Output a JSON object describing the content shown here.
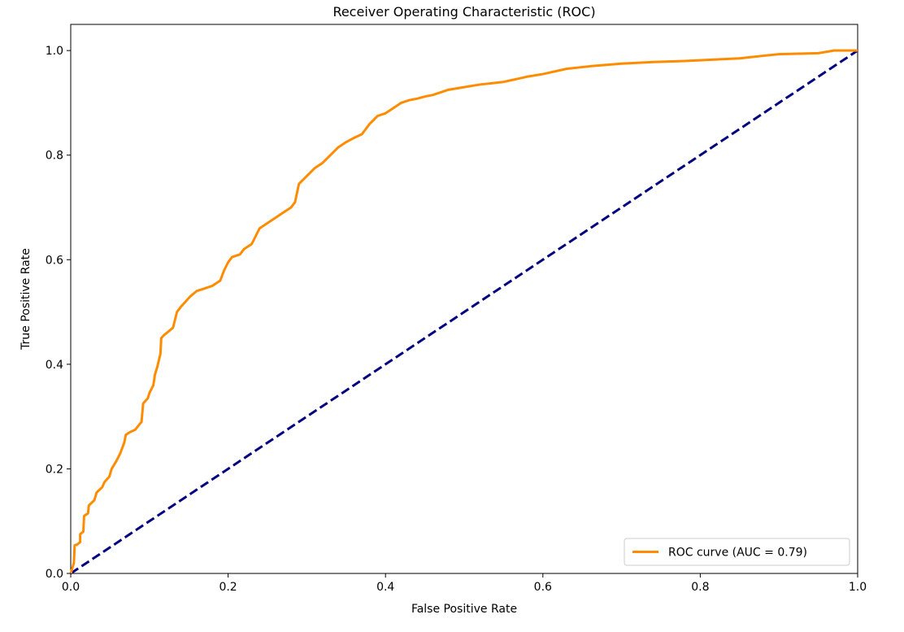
{
  "chart_data": {
    "type": "line",
    "title": "Receiver Operating Characteristic (ROC)",
    "xlabel": "False Positive Rate",
    "ylabel": "True Positive Rate",
    "xlim": [
      0.0,
      1.0
    ],
    "ylim": [
      0.0,
      1.05
    ],
    "xticks": [
      "0.0",
      "0.2",
      "0.4",
      "0.6",
      "0.8",
      "1.0"
    ],
    "yticks": [
      "0.0",
      "0.2",
      "0.4",
      "0.6",
      "0.8",
      "1.0"
    ],
    "grid": false,
    "legend_position": "lower right",
    "series": [
      {
        "name": "ROC curve (AUC = 0.79)",
        "color": "#ff8c00",
        "style": "solid",
        "x": [
          0.0,
          0.004,
          0.005,
          0.008,
          0.012,
          0.012,
          0.016,
          0.017,
          0.022,
          0.023,
          0.03,
          0.033,
          0.04,
          0.043,
          0.049,
          0.052,
          0.058,
          0.063,
          0.068,
          0.07,
          0.075,
          0.082,
          0.09,
          0.092,
          0.098,
          0.1,
          0.105,
          0.107,
          0.11,
          0.114,
          0.115,
          0.118,
          0.122,
          0.13,
          0.135,
          0.14,
          0.146,
          0.152,
          0.16,
          0.17,
          0.18,
          0.19,
          0.195,
          0.2,
          0.205,
          0.215,
          0.22,
          0.23,
          0.24,
          0.25,
          0.26,
          0.27,
          0.28,
          0.285,
          0.29,
          0.3,
          0.31,
          0.32,
          0.33,
          0.34,
          0.35,
          0.36,
          0.37,
          0.38,
          0.39,
          0.4,
          0.41,
          0.42,
          0.43,
          0.44,
          0.45,
          0.46,
          0.47,
          0.48,
          0.5,
          0.52,
          0.55,
          0.58,
          0.6,
          0.63,
          0.66,
          0.7,
          0.74,
          0.78,
          0.82,
          0.85,
          0.88,
          0.9,
          0.95,
          0.97,
          1.0
        ],
        "y": [
          0.0,
          0.02,
          0.054,
          0.055,
          0.06,
          0.075,
          0.08,
          0.11,
          0.115,
          0.13,
          0.14,
          0.155,
          0.165,
          0.175,
          0.185,
          0.2,
          0.215,
          0.23,
          0.25,
          0.265,
          0.27,
          0.275,
          0.29,
          0.325,
          0.335,
          0.345,
          0.36,
          0.38,
          0.395,
          0.42,
          0.45,
          0.455,
          0.46,
          0.47,
          0.5,
          0.51,
          0.52,
          0.53,
          0.54,
          0.545,
          0.55,
          0.56,
          0.58,
          0.595,
          0.605,
          0.61,
          0.62,
          0.63,
          0.66,
          0.67,
          0.68,
          0.69,
          0.7,
          0.71,
          0.745,
          0.76,
          0.775,
          0.785,
          0.8,
          0.815,
          0.825,
          0.833,
          0.84,
          0.86,
          0.875,
          0.88,
          0.89,
          0.9,
          0.905,
          0.908,
          0.912,
          0.915,
          0.92,
          0.925,
          0.93,
          0.935,
          0.94,
          0.95,
          0.955,
          0.965,
          0.97,
          0.975,
          0.978,
          0.98,
          0.983,
          0.985,
          0.99,
          0.993,
          0.995,
          1.0,
          1.0
        ]
      },
      {
        "name": "",
        "color": "#000080",
        "style": "dashed",
        "x": [
          0.0,
          1.0
        ],
        "y": [
          0.0,
          1.0
        ]
      }
    ]
  },
  "legend": {
    "entry_label": "ROC curve (AUC = 0.79)"
  }
}
